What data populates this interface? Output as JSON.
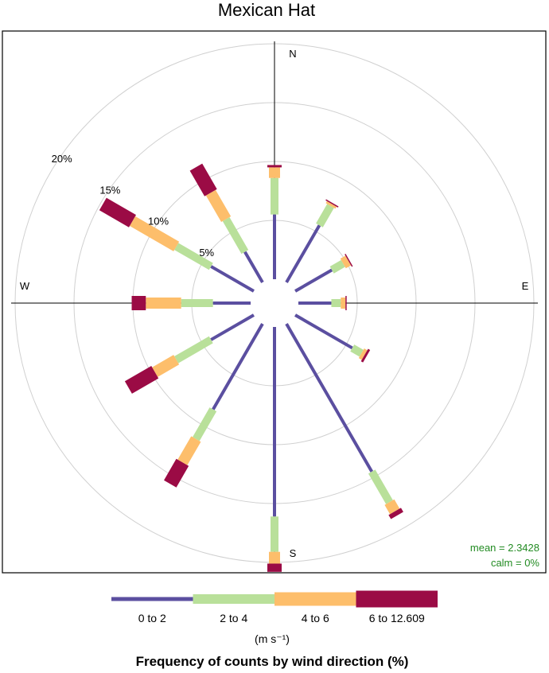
{
  "chart_data": {
    "type": "windrose",
    "title": "Mexican Hat",
    "direction_labels": [
      "N",
      "E",
      "S",
      "W"
    ],
    "radial_labels": [
      {
        "value": 5,
        "label": "5%"
      },
      {
        "value": 10,
        "label": "10%"
      },
      {
        "value": 15,
        "label": "15%"
      },
      {
        "value": 20,
        "label": "20%"
      }
    ],
    "radial_max": 20,
    "directions": [
      0,
      30,
      60,
      90,
      120,
      150,
      180,
      210,
      240,
      270,
      300,
      330
    ],
    "bins": [
      {
        "label": "0 to 2",
        "color": "#5B4FA0"
      },
      {
        "label": "2 to 4",
        "color": "#B9E09A"
      },
      {
        "label": "4 to 6",
        "color": "#FDBE6B"
      },
      {
        "label": "6 to 12.609",
        "color": "#9B0B45"
      }
    ],
    "cumulative_frequencies": [
      [
        5.5,
        8.6,
        9.5,
        9.7
      ],
      [
        5.6,
        7.5,
        7.7,
        7.8
      ],
      [
        3.6,
        4.7,
        5.2,
        5.3
      ],
      [
        2.8,
        3.6,
        4.0,
        4.1
      ],
      [
        5.6,
        6.5,
        6.8,
        7.0
      ],
      [
        14.5,
        17.5,
        18.4,
        18.8
      ],
      [
        16.1,
        19.1,
        20.1,
        20.8
      ],
      [
        8.4,
        11.3,
        13.6,
        15.7
      ],
      [
        4.2,
        7.6,
        9.7,
        12.3
      ],
      [
        3.2,
        5.9,
        8.9,
        10.1
      ],
      [
        4.2,
        7.6,
        11.9,
        14.8
      ],
      [
        3.0,
        6.2,
        8.8,
        11.3
      ]
    ],
    "mean_label": "mean = 2.3428",
    "calm_label": "calm = 0%",
    "legend_units": "(m s⁻¹)",
    "legend_title": "Frequency of counts by wind direction (%)"
  }
}
